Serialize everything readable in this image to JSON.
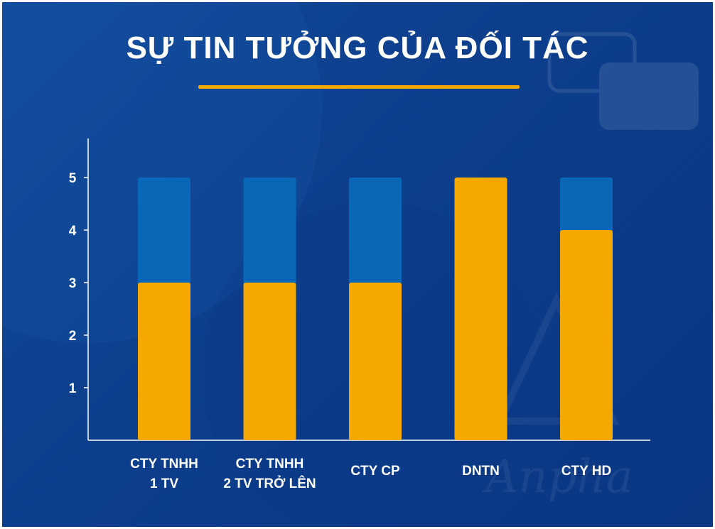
{
  "title": "SỰ TIN TƯỞNG CỦA ĐỐI TÁC",
  "watermark": "Anpha",
  "colors": {
    "background": "#0d3e8c",
    "accent": "#f5a800",
    "bar_track": "#0a67b8",
    "axis": "#ffffff"
  },
  "chart_data": {
    "type": "bar",
    "title": "SỰ TIN TƯỞNG CỦA ĐỐI TÁC",
    "categories": [
      [
        "CTY TNHH",
        "1 TV"
      ],
      [
        "CTY TNHH",
        "2 TV TRỞ LÊN"
      ],
      [
        "CTY CP"
      ],
      [
        "DNTN"
      ],
      [
        "CTY HD"
      ]
    ],
    "values": [
      3,
      3,
      3,
      5,
      4
    ],
    "max_value": 5,
    "yticks": [
      1,
      2,
      3,
      4,
      5
    ],
    "ylim": [
      0,
      5.7
    ],
    "grid": false,
    "legend": "none"
  }
}
